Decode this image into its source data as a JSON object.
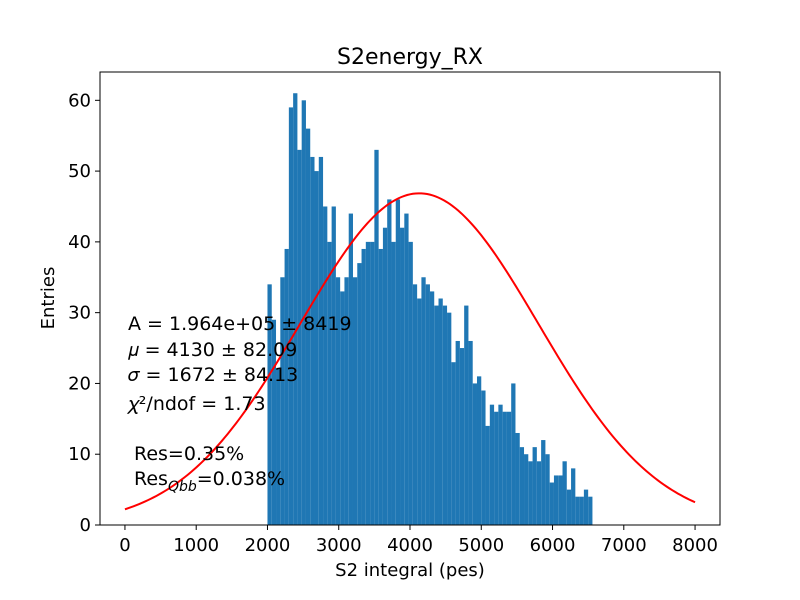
{
  "chart_data": {
    "type": "bar",
    "title": "S2energy_RX",
    "xlabel": "S2 integral (pes)",
    "ylabel": "Entries",
    "xlim": [
      -350,
      8350
    ],
    "ylim": [
      0,
      64
    ],
    "xticks": [
      0,
      1000,
      2000,
      3000,
      4000,
      5000,
      6000,
      7000,
      8000
    ],
    "yticks": [
      0,
      10,
      20,
      30,
      40,
      50,
      60
    ],
    "bin_start": 2000,
    "bin_width": 60,
    "counts": [
      34,
      29,
      22,
      35,
      39,
      59,
      61,
      53,
      60,
      56,
      52,
      50,
      52,
      45,
      40,
      45,
      35,
      33,
      35,
      44,
      35,
      37,
      39,
      40,
      40,
      53,
      39,
      42,
      46,
      40,
      46,
      42,
      44,
      40,
      34,
      32,
      35,
      34,
      33,
      31,
      32,
      31,
      30,
      23,
      26,
      25,
      31,
      26,
      20,
      21,
      19,
      14,
      17,
      16,
      17,
      16,
      16,
      20,
      13,
      11,
      10,
      9,
      11,
      9,
      12,
      10,
      6,
      7,
      7,
      9,
      5,
      8,
      4,
      4,
      5,
      4
    ],
    "series": [
      {
        "name": "fit",
        "type": "gaussian",
        "color": "#ff0000",
        "A": 196400,
        "mu": 4130,
        "sigma": 1672,
        "bin_width": 60,
        "x_range": [
          0,
          8000
        ]
      }
    ],
    "bar_color": "#1f77b4",
    "annotations": {
      "A_line": "A = 1.964e+05 ± 8419",
      "mu_line": "𝜇 = 4130 ± 82.09",
      "sigma_line": "𝜎 = 1672 ± 84.13",
      "chi_line": "𝜒²/ndof = 1.73",
      "res_line": "Res=0.35%",
      "resq_base": "Res",
      "resq_sub": "Qbb",
      "resq_rest": "=0.038%"
    }
  }
}
